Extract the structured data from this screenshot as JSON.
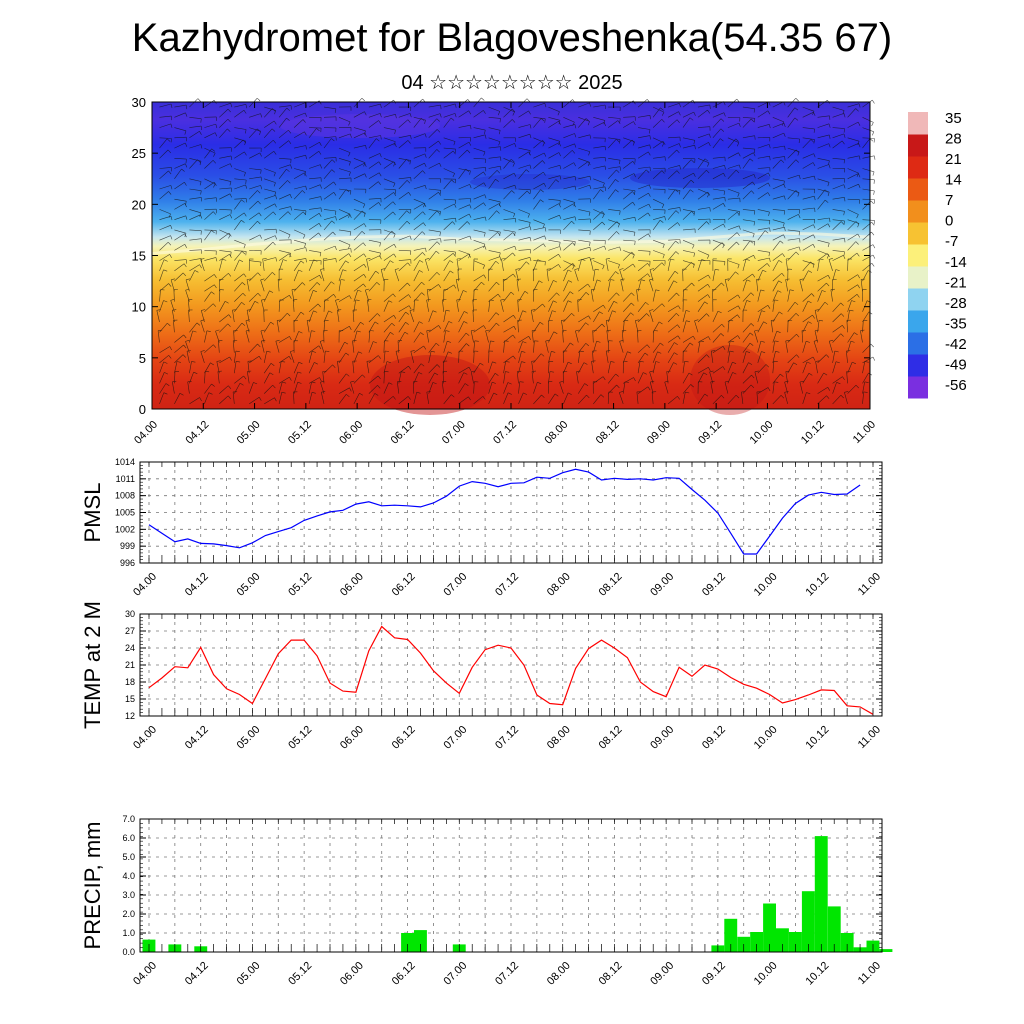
{
  "title": "Kazhydromet for Blagoveshenka(54.35 67)",
  "subtitle": "04 ☆☆☆☆☆☆☆☆ 2025",
  "time_labels": [
    "04.00",
    "04.12",
    "05.00",
    "05.12",
    "06.00",
    "06.12",
    "07.00",
    "07.12",
    "08.00",
    "08.12",
    "09.00",
    "09.12",
    "10.00",
    "10.12",
    "11.00"
  ],
  "chart_data": [
    {
      "type": "heatmap",
      "name": "cross-section",
      "ylim": [
        0,
        30
      ],
      "yticks": [
        0,
        5,
        10,
        15,
        20,
        25,
        30
      ],
      "colorbar_ticks": [
        35,
        28,
        21,
        14,
        7,
        0,
        -7,
        -14,
        -21,
        -28,
        -35,
        -42,
        -49,
        -56
      ],
      "colormap": [
        "#7a2fe0",
        "#2f2de6",
        "#2b6fe6",
        "#3aa6ec",
        "#8fd3f0",
        "#e8f2c8",
        "#fcf07a",
        "#f7c232",
        "#f28f1c",
        "#eb5a14",
        "#de2a14",
        "#c81818",
        "#f0b8b8"
      ],
      "x": [
        "04.00",
        "04.12",
        "05.00",
        "05.12",
        "06.00",
        "06.12",
        "07.00",
        "07.12",
        "08.00",
        "08.12",
        "09.00",
        "09.12",
        "10.00",
        "10.12",
        "11.00"
      ],
      "freezing_level": [
        15.2,
        15.6,
        16.1,
        16.5,
        16.8,
        16.9,
        16.6,
        16.5,
        16.4,
        16.3,
        16.4,
        16.8,
        17.2,
        17.1,
        16.8
      ]
    },
    {
      "type": "line",
      "ylabel": "PMSL",
      "ylim": [
        996,
        1014
      ],
      "yticks": [
        996,
        999,
        1002,
        1005,
        1008,
        1011,
        1014
      ],
      "color": "#0000ff",
      "x_start": 0,
      "x_step": 3,
      "values": [
        1002.8,
        1001.3,
        999.8,
        1000.3,
        999.5,
        999.4,
        999.1,
        998.7,
        999.6,
        1000.9,
        1001.6,
        1002.3,
        1003.6,
        1004.4,
        1005.1,
        1005.4,
        1006.5,
        1006.9,
        1006.2,
        1006.3,
        1006.2,
        1006.0,
        1006.7,
        1007.9,
        1009.7,
        1010.5,
        1010.2,
        1009.6,
        1010.2,
        1010.3,
        1011.3,
        1011.1,
        1012.1,
        1012.7,
        1012.2,
        1010.8,
        1011.1,
        1010.9,
        1011.0,
        1010.8,
        1011.2,
        1011.1,
        1009.1,
        1007.2,
        1004.9,
        1001.3,
        997.6,
        997.6,
        1000.8,
        1004.0,
        1006.6,
        1008.1,
        1008.6,
        1008.2,
        1008.3,
        1009.9
      ]
    },
    {
      "type": "line",
      "ylabel": "TEMP at 2 M",
      "ylim": [
        12,
        30
      ],
      "yticks": [
        12,
        15,
        18,
        21,
        24,
        27,
        30
      ],
      "color": "#ff0000",
      "x_start": 0,
      "x_step": 3,
      "values": [
        17.0,
        18.7,
        20.7,
        20.5,
        24.1,
        19.3,
        16.8,
        15.8,
        14.2,
        18.6,
        23.0,
        25.4,
        25.4,
        22.6,
        17.8,
        16.4,
        16.2,
        23.5,
        27.8,
        25.8,
        25.5,
        23.1,
        20.0,
        17.8,
        16.0,
        20.6,
        23.7,
        24.5,
        24.0,
        21.0,
        15.7,
        14.2,
        14.0,
        20.4,
        23.9,
        25.4,
        24.0,
        22.3,
        18.0,
        16.3,
        15.4,
        20.6,
        19.0,
        21.0,
        20.3,
        18.8,
        17.6,
        16.9,
        15.8,
        14.3,
        14.9,
        15.7,
        16.6,
        16.5,
        13.8,
        13.6,
        12.3
      ]
    },
    {
      "type": "bar",
      "ylabel": "PRECIP, mm",
      "ylim": [
        0,
        7
      ],
      "yticks": [
        0.0,
        1.0,
        2.0,
        3.0,
        4.0,
        5.0,
        6.0,
        7.0
      ],
      "color": "#00e600",
      "x_start": 0,
      "x_step": 3,
      "values": [
        0.65,
        0,
        0.4,
        0,
        0.3,
        0,
        0,
        0,
        0,
        0,
        0,
        0,
        0,
        0,
        0,
        0,
        0,
        0,
        0,
        0,
        1.0,
        1.15,
        0,
        0,
        0.4,
        0,
        0,
        0,
        0,
        0,
        0,
        0,
        0,
        0,
        0,
        0,
        0,
        0,
        0,
        0,
        0,
        0,
        0,
        0,
        0.35,
        1.75,
        0.8,
        1.05,
        2.55,
        1.25,
        1.05,
        3.2,
        6.1,
        2.4,
        1.0,
        0.25,
        0.6,
        0.15
      ]
    }
  ]
}
